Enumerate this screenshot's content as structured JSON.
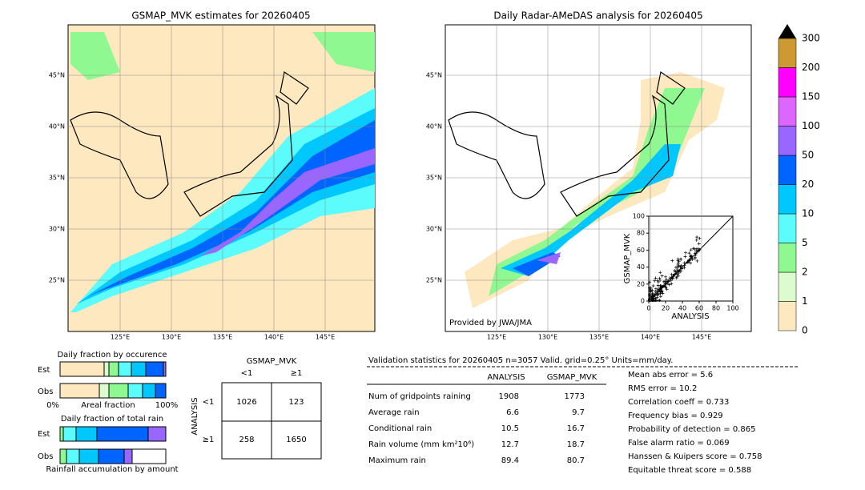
{
  "left_map": {
    "title": "GSMAP_MVK estimates for 20260405",
    "lat_labels": [
      "45°N",
      "40°N",
      "35°N",
      "30°N",
      "25°N"
    ],
    "lon_labels": [
      "125°E",
      "130°E",
      "135°E",
      "140°E",
      "145°E"
    ]
  },
  "right_map": {
    "title": "Daily Radar-AMeDAS analysis for 20260405",
    "lat_labels": [
      "45°N",
      "40°N",
      "35°N",
      "30°N",
      "25°N"
    ],
    "lon_labels": [
      "125°E",
      "130°E",
      "135°E",
      "140°E",
      "145°E"
    ],
    "credit": "Provided by JWA/JMA"
  },
  "inset": {
    "xlabel": "ANALYSIS",
    "ylabel": "GSMAP_MVK",
    "xticks": [
      0,
      20,
      40,
      60,
      80,
      100
    ],
    "yticks": [
      0,
      20,
      40,
      60,
      80,
      100
    ]
  },
  "colorbar": {
    "labels": [
      "0",
      "1",
      "2",
      "5",
      "10",
      "20",
      "50",
      "100",
      "150",
      "200",
      "300"
    ],
    "colors": [
      "#fde8bf",
      "#dcfcd0",
      "#90f890",
      "#5cfcfc",
      "#00c8ff",
      "#0064ff",
      "#9966ff",
      "#dd66ff",
      "#ff00ff",
      "#cc9933"
    ]
  },
  "fraction_occurrence": {
    "title": "Daily fraction by occurence",
    "rows": [
      "Est",
      "Obs"
    ],
    "left": "0%",
    "axis_label": "Areal fraction",
    "right": "100%"
  },
  "fraction_rain": {
    "title": "Daily fraction of total rain",
    "rows": [
      "Est",
      "Obs"
    ],
    "footer": "Rainfall accumulation by amount"
  },
  "contingency": {
    "title": "GSMAP_MVK",
    "columns": [
      "<1",
      "≥1"
    ],
    "ylabel": "ANALYSIS",
    "rows": [
      "<1",
      "≥1"
    ],
    "cells": [
      [
        1026,
        123
      ],
      [
        258,
        1650
      ]
    ]
  },
  "stats": {
    "heading": "Validation statistics for 20260405  n=3057 Valid. grid=0.25° Units=mm/day.",
    "columns": [
      "ANALYSIS",
      "GSMAP_MVK"
    ],
    "rows": [
      {
        "label": "Num of gridpoints raining",
        "values": [
          1908,
          1773
        ]
      },
      {
        "label": "Average rain",
        "values": [
          6.6,
          9.7
        ]
      },
      {
        "label": "Conditional rain",
        "values": [
          10.5,
          16.7
        ]
      },
      {
        "label": "Rain volume (mm km²10⁶)",
        "values": [
          12.7,
          18.7
        ]
      },
      {
        "label": "Maximum rain",
        "values": [
          89.4,
          80.7
        ]
      }
    ],
    "scores": [
      "Mean abs error =    5.6",
      "RMS error =   10.2",
      "Correlation coeff =  0.733",
      "Frequency bias =  0.929",
      "Probability of detection =  0.865",
      "False alarm ratio =  0.069",
      "Hanssen & Kuipers score =  0.758",
      "Equitable threat score =  0.588"
    ]
  }
}
